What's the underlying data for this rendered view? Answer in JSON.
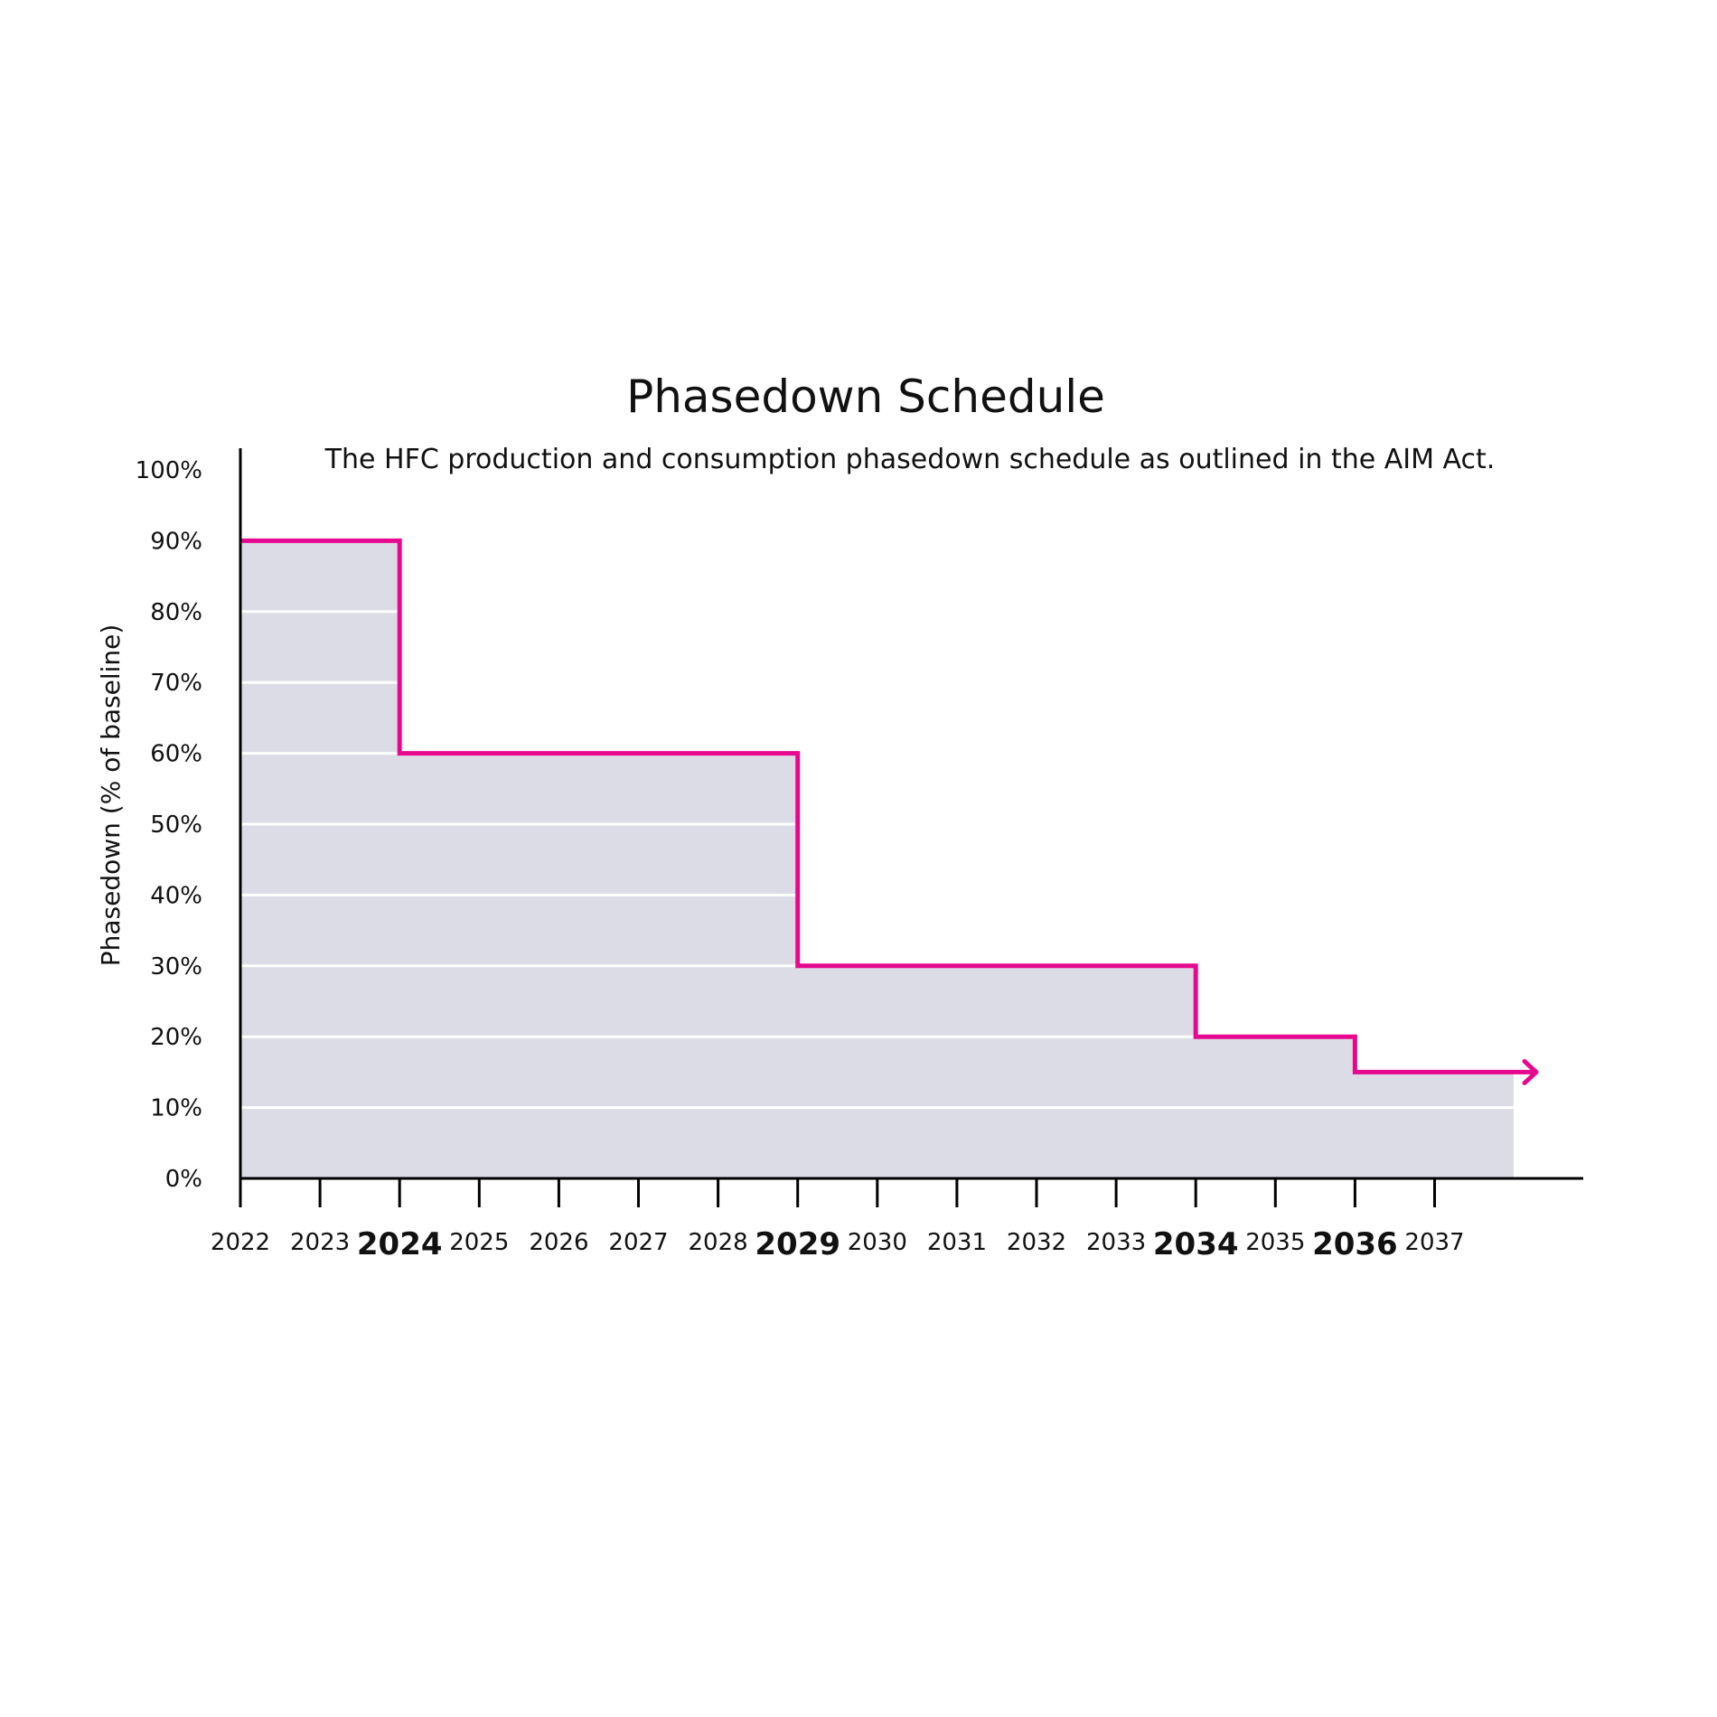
{
  "chart_data": {
    "type": "line",
    "style": "step",
    "title": "Phasedown Schedule",
    "subtitle": "The HFC production and consumption phasedown schedule as outlined in the AIM Act.",
    "ylabel": "Phasedown (% of baseline)",
    "xlabel": "",
    "ylim": [
      0,
      100
    ],
    "yticks": [
      "0%",
      "10%",
      "20%",
      "30%",
      "40%",
      "50%",
      "60%",
      "70%",
      "80%",
      "90%",
      "100%"
    ],
    "x_categories": [
      "2022",
      "2023",
      "2024",
      "2025",
      "2026",
      "2027",
      "2028",
      "2029",
      "2030",
      "2031",
      "2032",
      "2033",
      "2034",
      "2035",
      "2036",
      "2037"
    ],
    "highlighted_years": [
      "2024",
      "2029",
      "2034",
      "2036"
    ],
    "grid": true,
    "fill_under_line": true,
    "line_end": "arrow",
    "series": [
      {
        "steps": [
          {
            "from": "2022",
            "value": 90
          },
          {
            "from": "2024",
            "value": 60
          },
          {
            "from": "2029",
            "value": 30
          },
          {
            "from": "2034",
            "value": 20
          },
          {
            "from": "2036",
            "value": 15
          }
        ]
      }
    ],
    "colors": {
      "line": "#e6098f",
      "fill": "#dcdce6",
      "grid": "#ffffff",
      "axis": "#000000",
      "highlight_text": "#e6098f"
    }
  }
}
